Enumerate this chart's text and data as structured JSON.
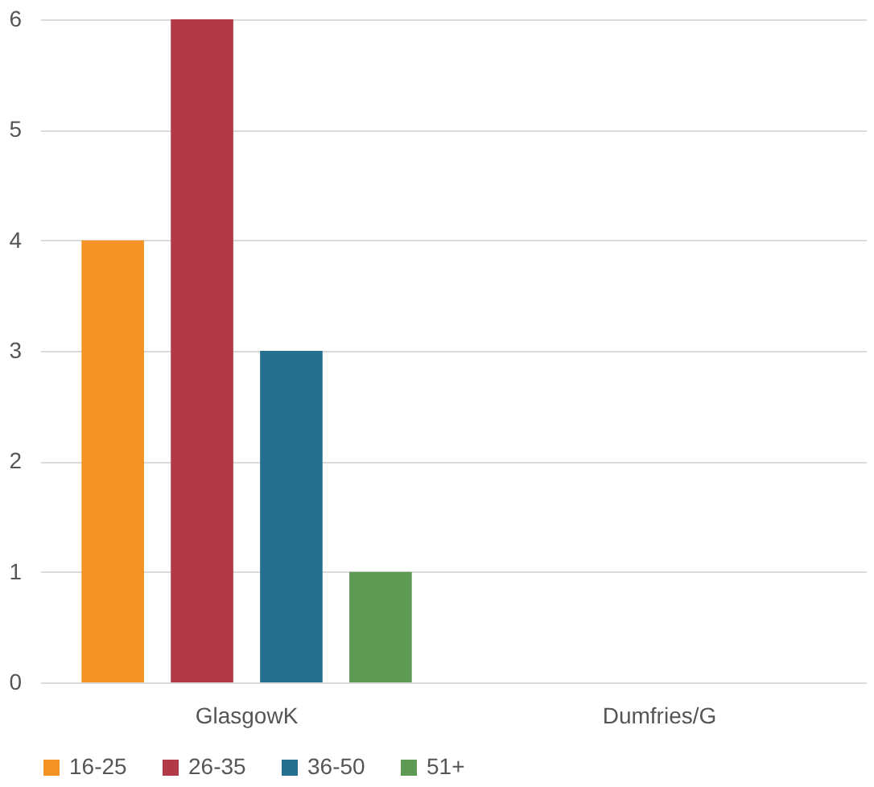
{
  "chart_data": {
    "type": "bar",
    "categories": [
      "GlasgowK",
      "Dumfries/G"
    ],
    "series": [
      {
        "name": "16-25",
        "color": "#f39325",
        "values": [
          4,
          0
        ]
      },
      {
        "name": "26-35",
        "color": "#b23a48",
        "values": [
          6,
          0
        ]
      },
      {
        "name": "36-50",
        "color": "#26708f",
        "values": [
          3,
          0
        ]
      },
      {
        "name": "51+",
        "color": "#5f9a55",
        "values": [
          1,
          0
        ]
      }
    ],
    "ylim": [
      0,
      6
    ],
    "yticks": [
      0,
      1,
      2,
      3,
      4,
      5,
      6
    ],
    "grid": "y",
    "legend": "bottom"
  }
}
